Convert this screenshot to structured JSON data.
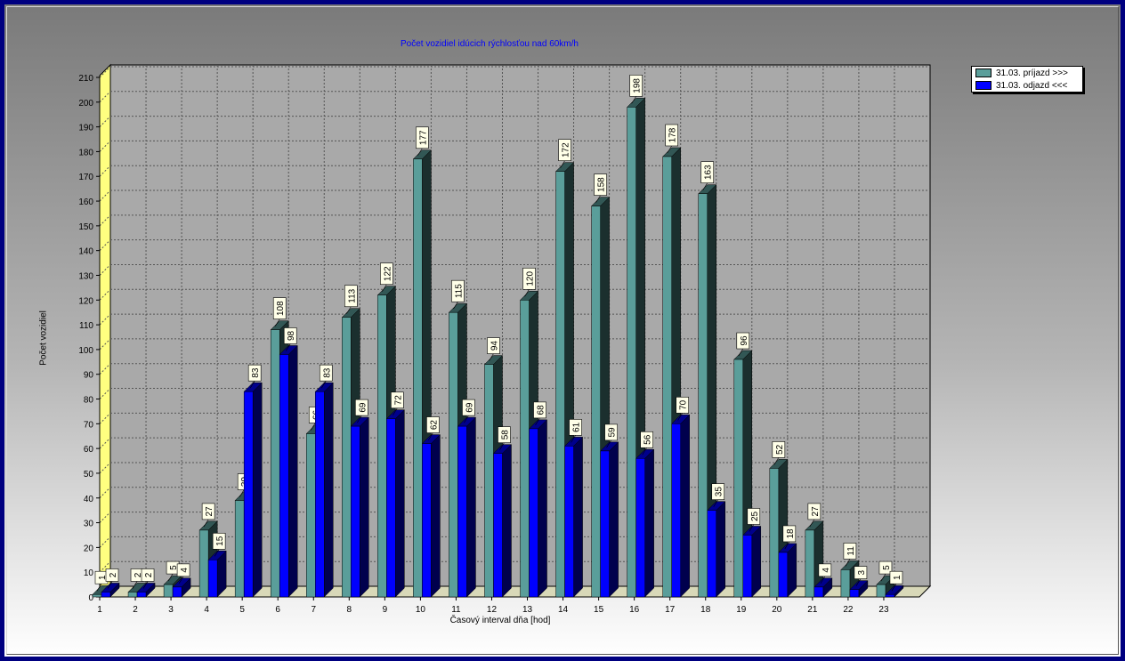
{
  "chart_data": {
    "type": "bar",
    "title": "Počet vozidiel idúcich rýchlosťou nad 60km/h",
    "xlabel": "Časový interval dňa [hod]",
    "ylabel": "Počet vozidiel",
    "ylim": [
      0,
      210
    ],
    "ytick_step": 10,
    "grid": true,
    "legend_position": "top-right",
    "categories": [
      "1",
      "2",
      "3",
      "4",
      "5",
      "6",
      "7",
      "8",
      "9",
      "10",
      "11",
      "12",
      "13",
      "14",
      "15",
      "16",
      "17",
      "18",
      "19",
      "20",
      "21",
      "22",
      "23"
    ],
    "series": [
      {
        "name": "31.03. príjazd >>>",
        "color": "#5a9e9a",
        "values": [
          1,
          2,
          5,
          27,
          39,
          108,
          66,
          113,
          122,
          177,
          115,
          94,
          120,
          172,
          158,
          198,
          178,
          163,
          96,
          52,
          27,
          11,
          5
        ]
      },
      {
        "name": "31.03. odjazd <<<",
        "color": "#0000ff",
        "values": [
          2,
          2,
          4,
          15,
          83,
          98,
          83,
          69,
          72,
          62,
          69,
          58,
          68,
          61,
          59,
          56,
          70,
          35,
          25,
          18,
          4,
          3,
          1
        ]
      }
    ]
  }
}
